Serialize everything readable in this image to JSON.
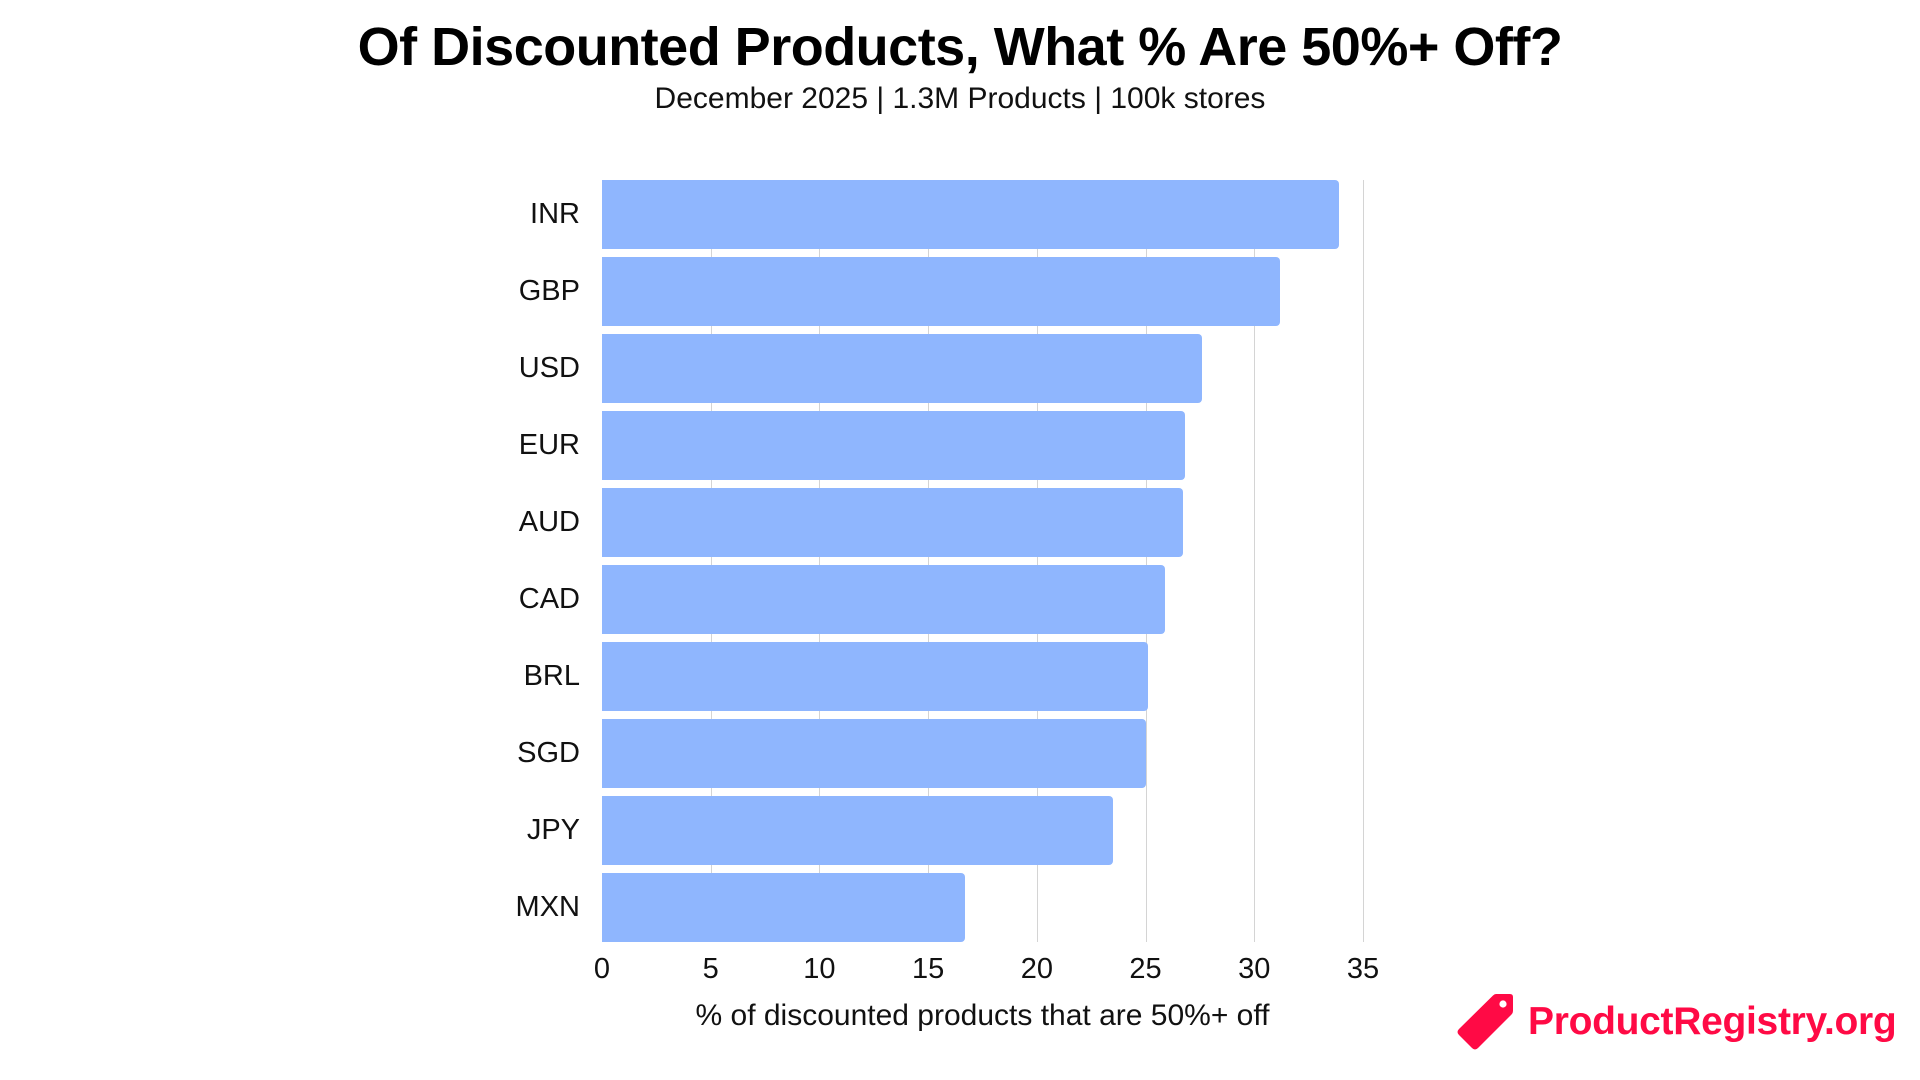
{
  "header": {
    "title": "Of Discounted Products, What % Are 50%+ Off?",
    "subtitle": "December 2025 | 1.3M Products | 100k stores"
  },
  "colors": {
    "bar": "#8fb6fe",
    "gridline": "#d4d4d4",
    "brand": "#ff0a45"
  },
  "logo": {
    "icon": "price-tag-icon",
    "text": "ProductRegistry.org"
  },
  "chart_data": {
    "type": "bar",
    "orientation": "horizontal",
    "title": "Of Discounted Products, What % Are 50%+ Off?",
    "subtitle": "December 2025 | 1.3M Products | 100k stores",
    "categories": [
      "INR",
      "GBP",
      "USD",
      "EUR",
      "AUD",
      "CAD",
      "BRL",
      "SGD",
      "JPY",
      "MXN"
    ],
    "values": [
      33.9,
      31.2,
      27.6,
      26.8,
      26.7,
      25.9,
      25.1,
      25.0,
      23.5,
      16.7
    ],
    "xlabel": "% of discounted products that are 50%+ off",
    "ylabel": "",
    "xlim": [
      0,
      35
    ],
    "xticks": [
      "0",
      "5",
      "10",
      "15",
      "20",
      "25",
      "30",
      "35"
    ],
    "grid": true,
    "legend": null
  }
}
